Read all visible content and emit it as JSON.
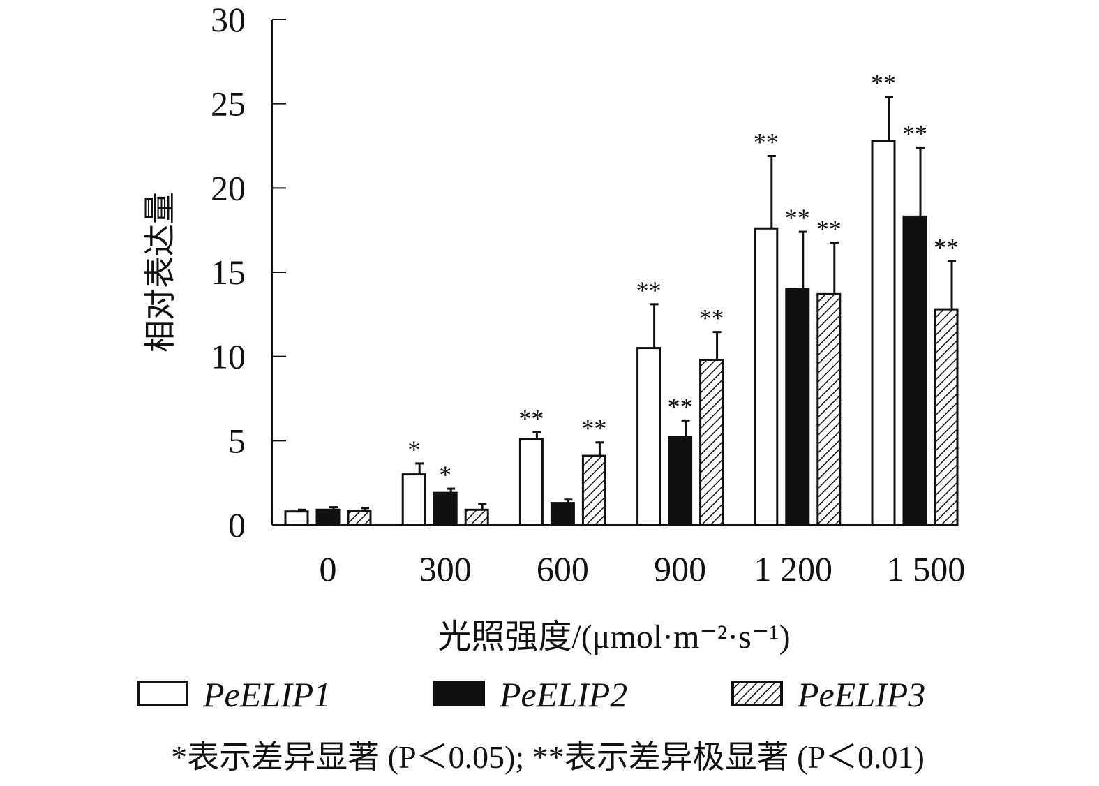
{
  "chart_data": {
    "type": "bar",
    "title": "",
    "xlabel": "光照强度/(μmol·m⁻²·s⁻¹)",
    "ylabel": "相对表达量",
    "ylim": [
      0,
      30
    ],
    "yticks": [
      "0",
      "5",
      "10",
      "15",
      "20",
      "25",
      "30"
    ],
    "categories": [
      "0",
      "300",
      "600",
      "900",
      "1 200",
      "1 500"
    ],
    "series": [
      {
        "name": "PeELIP1",
        "fill": "white",
        "values": [
          0.8,
          3.0,
          5.1,
          10.5,
          17.6,
          22.8
        ],
        "errors": [
          0.1,
          0.65,
          0.4,
          2.6,
          4.3,
          2.6
        ],
        "sig": [
          "",
          "*",
          "**",
          "**",
          "**",
          "**"
        ]
      },
      {
        "name": "PeELIP2",
        "fill": "black",
        "values": [
          0.9,
          1.9,
          1.3,
          5.2,
          14.0,
          18.3
        ],
        "errors": [
          0.15,
          0.25,
          0.2,
          1.0,
          3.4,
          4.1
        ],
        "sig": [
          "",
          "*",
          "",
          "**",
          "**",
          "**"
        ]
      },
      {
        "name": "PeELIP3",
        "fill": "hatch",
        "values": [
          0.85,
          0.9,
          4.1,
          9.8,
          13.7,
          12.8
        ],
        "errors": [
          0.15,
          0.35,
          0.8,
          1.65,
          3.05,
          2.85
        ],
        "sig": [
          "",
          "",
          "**",
          "**",
          "**",
          "**"
        ]
      }
    ],
    "legend": "bottom",
    "footnote": "*表示差异显著 (P＜0.05); **表示差异极显著 (P＜0.01)"
  }
}
